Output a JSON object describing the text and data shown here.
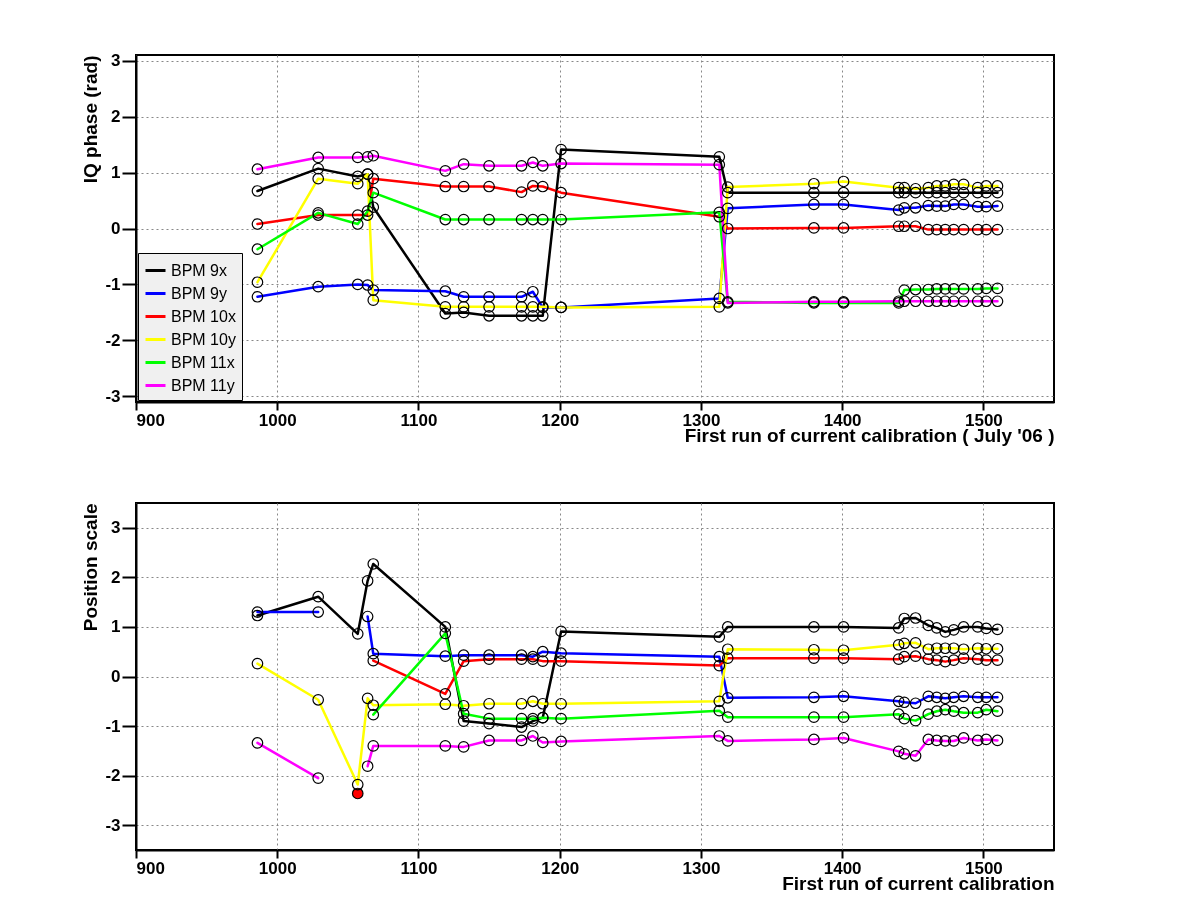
{
  "chart_data": [
    {
      "type": "line",
      "ylabel": "IQ phase (rad)",
      "xlabel": "First run of current calibration ( July '06 )",
      "x": [
        986,
        1029,
        1057,
        1064,
        1068,
        1119,
        1132,
        1150,
        1173,
        1181,
        1188,
        1201,
        1313,
        1319,
        1380,
        1401,
        1440,
        1444,
        1452,
        1461,
        1467,
        1473,
        1479,
        1486,
        1496,
        1502,
        1510
      ],
      "xlim": [
        900,
        1550
      ],
      "xticks": [
        900,
        1000,
        1100,
        1200,
        1300,
        1400,
        1500
      ],
      "ylim": [
        -3.1,
        3.1
      ],
      "yticks": [
        -3,
        -2,
        -1,
        0,
        1,
        2,
        3
      ],
      "grid": true,
      "marker": "circle",
      "legend": "bottom left",
      "series": [
        {
          "name": "BPM 9x",
          "color": "#000000",
          "values": [
            0.67,
            1.07,
            0.93,
            0.97,
            0.38,
            -1.52,
            -1.5,
            -1.56,
            -1.56,
            -1.56,
            -1.56,
            1.41,
            1.28,
            0.64,
            0.64,
            0.64,
            0.64,
            0.64,
            0.64,
            0.64,
            0.64,
            0.64,
            0.64,
            0.64,
            0.64,
            0.64,
            0.64
          ]
        },
        {
          "name": "BPM 9y",
          "color": "#0000ff",
          "values": [
            -1.22,
            -1.04,
            -1.0,
            -1.01,
            -1.1,
            -1.12,
            -1.22,
            -1.22,
            -1.22,
            -1.13,
            -1.41,
            -1.41,
            -1.25,
            0.36,
            0.43,
            0.43,
            0.33,
            0.37,
            0.37,
            0.41,
            0.4,
            0.4,
            0.43,
            0.43,
            0.39,
            0.39,
            0.4
          ]
        },
        {
          "name": "BPM 10x",
          "color": "#ff0000",
          "values": [
            0.08,
            0.24,
            0.24,
            0.24,
            0.89,
            0.75,
            0.75,
            0.75,
            0.65,
            0.76,
            0.75,
            0.64,
            0.21,
            0.0,
            0.01,
            0.01,
            0.04,
            0.04,
            0.04,
            -0.02,
            -0.02,
            -0.02,
            -0.02,
            -0.02,
            -0.02,
            -0.02,
            -0.02
          ]
        },
        {
          "name": "BPM 10y",
          "color": "#ffff00",
          "values": [
            -0.96,
            0.89,
            0.8,
            0.97,
            -1.28,
            -1.4,
            -1.4,
            -1.4,
            -1.4,
            -1.4,
            -1.4,
            -1.41,
            -1.4,
            0.74,
            0.8,
            0.84,
            0.73,
            0.73,
            0.71,
            0.73,
            0.76,
            0.76,
            0.79,
            0.79,
            0.73,
            0.76,
            0.76
          ]
        },
        {
          "name": "BPM 11x",
          "color": "#00ff00",
          "values": [
            -0.37,
            0.28,
            0.08,
            0.31,
            0.64,
            0.16,
            0.16,
            0.16,
            0.16,
            0.16,
            0.16,
            0.16,
            0.29,
            -1.31,
            -1.33,
            -1.33,
            -1.33,
            -1.1,
            -1.09,
            -1.09,
            -1.08,
            -1.08,
            -1.08,
            -1.08,
            -1.08,
            -1.07,
            -1.07
          ]
        },
        {
          "name": "BPM 11y",
          "color": "#ff00ff",
          "values": [
            1.06,
            1.27,
            1.27,
            1.28,
            1.3,
            1.03,
            1.15,
            1.12,
            1.12,
            1.18,
            1.12,
            1.16,
            1.14,
            -1.33,
            -1.31,
            -1.31,
            -1.3,
            -1.3,
            -1.3,
            -1.3,
            -1.3,
            -1.3,
            -1.3,
            -1.3,
            -1.3,
            -1.3,
            -1.3
          ]
        }
      ]
    },
    {
      "type": "line",
      "ylabel": "Position scale",
      "xlabel": "First run of current calibration",
      "x": [
        986,
        1029,
        1057,
        1064,
        1068,
        1119,
        1132,
        1150,
        1173,
        1181,
        1188,
        1201,
        1313,
        1319,
        1380,
        1401,
        1440,
        1444,
        1452,
        1461,
        1467,
        1473,
        1479,
        1486,
        1496,
        1502,
        1510
      ],
      "xlim": [
        900,
        1550
      ],
      "xticks": [
        900,
        1000,
        1100,
        1200,
        1300,
        1400,
        1500
      ],
      "ylim": [
        -3.5,
        3.5
      ],
      "yticks": [
        -3,
        -2,
        -1,
        0,
        1,
        2,
        3
      ],
      "grid": true,
      "marker": "circle",
      "series": [
        {
          "color": "#000000",
          "values": [
            1.23,
            1.61,
            0.86,
            1.93,
            2.27,
            1.0,
            -0.9,
            -0.95,
            -1.02,
            -0.9,
            -0.83,
            0.91,
            0.8,
            1.0,
            1.0,
            1.0,
            0.98,
            1.17,
            1.18,
            1.03,
            0.98,
            0.9,
            0.94,
            1.0,
            1.0,
            0.97,
            0.95
          ]
        },
        {
          "color": "#0000ff",
          "values": [
            1.3,
            1.3,
            null,
            1.21,
            0.46,
            0.41,
            0.43,
            0.43,
            0.43,
            0.4,
            0.5,
            0.47,
            0.4,
            -0.43,
            -0.42,
            -0.4,
            -0.5,
            -0.52,
            -0.54,
            -0.4,
            -0.42,
            -0.44,
            -0.42,
            -0.4,
            -0.42,
            -0.42,
            -0.42
          ]
        },
        {
          "color": "#ff0000",
          "values": [
            null,
            null,
            -2.36,
            null,
            0.32,
            -0.35,
            0.31,
            0.35,
            0.35,
            0.35,
            0.31,
            0.31,
            0.22,
            0.37,
            0.37,
            0.37,
            0.35,
            0.4,
            0.41,
            0.35,
            0.33,
            0.3,
            0.33,
            0.37,
            0.35,
            0.33,
            0.33
          ]
        },
        {
          "color": "#ffff00",
          "values": [
            0.26,
            -0.47,
            -2.18,
            -0.44,
            -0.58,
            -0.56,
            -0.59,
            -0.55,
            -0.55,
            -0.5,
            -0.55,
            -0.55,
            -0.5,
            0.55,
            0.54,
            0.53,
            0.64,
            0.67,
            0.68,
            0.55,
            0.57,
            0.57,
            0.57,
            0.55,
            0.57,
            0.56,
            0.56
          ]
        },
        {
          "color": "#00ff00",
          "values": [
            null,
            null,
            null,
            null,
            -0.77,
            0.87,
            -0.75,
            -0.85,
            -0.85,
            -0.85,
            -0.83,
            -0.85,
            -0.69,
            -0.82,
            -0.82,
            -0.82,
            -0.76,
            -0.85,
            -0.89,
            -0.76,
            -0.7,
            -0.67,
            -0.7,
            -0.73,
            -0.73,
            -0.67,
            -0.7
          ]
        },
        {
          "color": "#ff00ff",
          "values": [
            -1.34,
            -2.05,
            null,
            -1.81,
            -1.4,
            -1.4,
            -1.42,
            -1.29,
            -1.29,
            -1.2,
            -1.33,
            -1.31,
            -1.2,
            -1.3,
            -1.27,
            -1.24,
            -1.51,
            -1.56,
            -1.6,
            -1.27,
            -1.29,
            -1.3,
            -1.3,
            -1.24,
            -1.29,
            -1.27,
            -1.29
          ]
        }
      ]
    }
  ]
}
